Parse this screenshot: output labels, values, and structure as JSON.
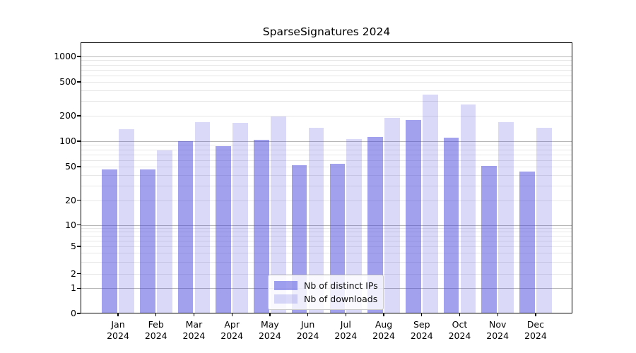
{
  "chart_data": {
    "type": "bar",
    "title": "SparseSignatures 2024",
    "categories": [
      {
        "month": "Jan",
        "year": "2024"
      },
      {
        "month": "Feb",
        "year": "2024"
      },
      {
        "month": "Mar",
        "year": "2024"
      },
      {
        "month": "Apr",
        "year": "2024"
      },
      {
        "month": "May",
        "year": "2024"
      },
      {
        "month": "Jun",
        "year": "2024"
      },
      {
        "month": "Jul",
        "year": "2024"
      },
      {
        "month": "Aug",
        "year": "2024"
      },
      {
        "month": "Sep",
        "year": "2024"
      },
      {
        "month": "Oct",
        "year": "2024"
      },
      {
        "month": "Nov",
        "year": "2024"
      },
      {
        "month": "Dec",
        "year": "2024"
      }
    ],
    "series": [
      {
        "name": "Nb of distinct IPs",
        "color": "rgba(68,68,221,0.5)",
        "values": [
          46,
          46,
          100,
          88,
          103,
          52,
          54,
          112,
          178,
          110,
          51,
          44
        ]
      },
      {
        "name": "Nb of downloads",
        "color": "rgba(68,68,221,0.2)",
        "values": [
          140,
          78,
          167,
          165,
          195,
          145,
          105,
          190,
          352,
          270,
          169,
          145
        ]
      }
    ],
    "yscale": "symlog",
    "yticks": [
      0,
      1,
      2,
      5,
      10,
      20,
      50,
      100,
      200,
      500,
      1000
    ],
    "ylim": [
      0,
      1400
    ],
    "xlabel": "",
    "ylabel": "",
    "grid": "horizontal major+minor",
    "legend_position": "lower center"
  }
}
